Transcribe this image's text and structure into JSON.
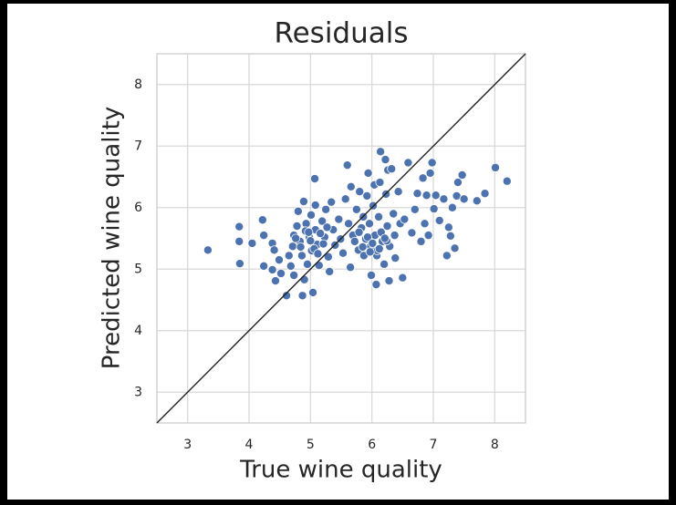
{
  "chart_data": {
    "type": "scatter",
    "title": "Residuals",
    "x_label": "True wine quality",
    "y_label": "Predicted wine quality",
    "color": "#4c72b0",
    "grid": true,
    "diagonal": true,
    "xlim": [
      2.5,
      8.5
    ],
    "ylim": [
      2.5,
      8.5
    ],
    "xticks": [
      3,
      4,
      5,
      6,
      7,
      8
    ],
    "yticks": [
      3,
      4,
      5,
      6,
      7,
      8
    ],
    "series": [
      {
        "x": [
          3.33,
          3.84,
          3.84,
          3.85,
          4.05,
          4.22,
          4.24,
          4.24,
          4.38,
          4.41,
          4.38,
          4.43,
          4.49,
          4.52,
          4.61,
          4.65,
          4.68,
          4.71,
          4.73,
          4.73,
          4.78,
          4.8,
          4.83,
          4.86,
          4.87,
          4.89,
          4.9,
          4.93,
          4.95,
          4.98,
          5.01,
          5.02,
          5.04,
          5.07,
          5.08,
          5.08,
          5.11,
          5.14,
          5.19,
          5.23,
          5.25,
          5.29,
          5.31,
          5.34,
          5.37,
          5.4,
          5.46,
          5.49,
          5.53,
          5.57,
          5.6,
          5.62,
          5.65,
          5.66,
          5.69,
          5.72,
          5.75,
          5.78,
          5.8,
          5.83,
          5.86,
          5.87,
          5.9,
          5.92,
          5.94,
          5.96,
          5.98,
          5.99,
          6.02,
          6.04,
          6.05,
          6.07,
          6.08,
          6.11,
          6.13,
          6.14,
          6.17,
          6.2,
          6.22,
          6.23,
          6.25,
          6.26,
          6.28,
          6.29,
          6.32,
          6.35,
          6.37,
          6.38,
          6.43,
          6.46,
          6.5,
          6.53,
          6.59,
          6.65,
          6.7,
          6.74,
          6.8,
          6.83,
          6.86,
          6.89,
          6.92,
          6.95,
          6.98,
          7.01,
          7.04,
          7.1,
          7.17,
          7.22,
          7.25,
          7.28,
          7.31,
          7.35,
          7.38,
          7.4,
          7.47,
          7.5,
          7.71,
          7.84,
          8.01,
          8.2,
          4.76,
          4.84,
          4.92,
          5.0,
          5.06,
          5.16,
          5.21,
          5.27,
          5.12,
          4.97,
          5.85,
          5.93,
          6.01,
          6.09,
          6.15,
          6.24,
          5.79,
          5.97,
          6.12,
          6.21
        ],
        "y": [
          5.31,
          5.69,
          5.45,
          5.09,
          5.42,
          5.8,
          5.55,
          5.05,
          5.42,
          5.31,
          4.99,
          4.81,
          5.15,
          4.93,
          4.57,
          5.22,
          5.05,
          5.37,
          5.55,
          4.9,
          5.7,
          5.94,
          5.45,
          5.22,
          4.57,
          6.1,
          4.83,
          5.74,
          5.08,
          5.52,
          5.88,
          5.3,
          4.62,
          6.47,
          6.04,
          5.64,
          5.4,
          5.06,
          5.78,
          5.52,
          5.97,
          5.2,
          4.96,
          6.09,
          5.64,
          5.39,
          5.81,
          5.49,
          5.26,
          6.14,
          6.69,
          5.74,
          5.03,
          6.34,
          5.55,
          5.45,
          5.97,
          5.31,
          6.26,
          5.67,
          5.85,
          5.22,
          5.49,
          6.19,
          6.56,
          5.74,
          5.37,
          4.9,
          6.03,
          6.37,
          5.55,
          4.75,
          5.22,
          5.85,
          6.41,
          6.91,
          5.45,
          5.08,
          6.78,
          6.22,
          5.7,
          6.61,
          4.81,
          5.37,
          6.63,
          5.9,
          5.55,
          5.18,
          6.26,
          5.74,
          4.86,
          5.81,
          6.73,
          5.59,
          5.97,
          6.23,
          5.45,
          6.48,
          5.74,
          6.2,
          5.55,
          6.56,
          6.73,
          5.98,
          6.2,
          5.79,
          6.14,
          5.22,
          5.68,
          5.54,
          6.0,
          5.34,
          6.19,
          6.41,
          6.53,
          6.14,
          6.11,
          6.23,
          6.65,
          6.43,
          5.5,
          5.36,
          5.62,
          5.46,
          5.33,
          5.58,
          5.41,
          5.68,
          5.25,
          5.6,
          5.36,
          5.52,
          5.42,
          5.3,
          5.6,
          5.46,
          5.6,
          5.28,
          5.33,
          5.5
        ]
      }
    ]
  }
}
